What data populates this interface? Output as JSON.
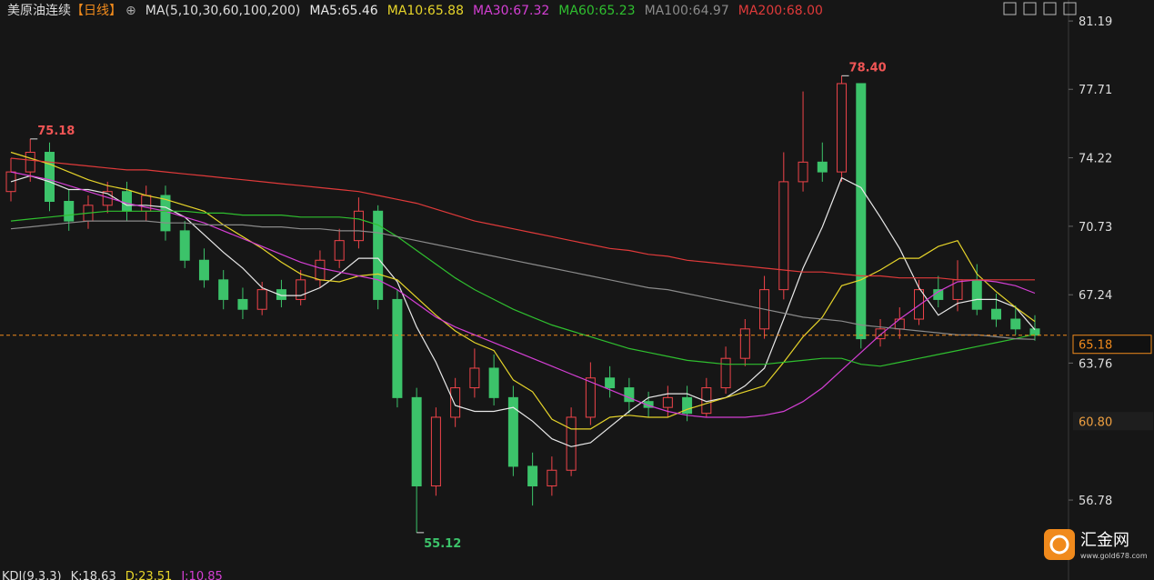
{
  "header": {
    "symbol": "美原油连续",
    "period": "【日线】",
    "ma_params": "MA(5,10,30,60,100,200)"
  },
  "chart_data": {
    "type": "candlestick",
    "open": [
      72.5,
      73.5,
      74.5,
      72.0,
      71.0,
      71.8,
      72.5,
      71.5,
      72.3,
      70.5,
      69.0,
      68.0,
      67.0,
      66.5,
      67.5,
      67.0,
      68.0,
      69.0,
      70.0,
      71.5,
      67.0,
      62.0,
      57.5,
      61.0,
      62.5,
      63.5,
      62.0,
      58.5,
      57.5,
      58.3,
      61.0,
      63.0,
      62.5,
      61.8,
      61.5,
      62.0,
      61.2,
      62.5,
      64.0,
      65.5,
      67.5,
      73.0,
      74.0,
      73.5,
      78.0,
      65.0,
      65.5,
      66.0,
      67.5,
      67.0,
      68.0,
      66.5,
      66.0,
      65.5
    ],
    "high": [
      74.2,
      75.18,
      75.0,
      72.6,
      72.3,
      73.0,
      73.0,
      72.8,
      72.8,
      71.0,
      69.6,
      68.5,
      67.6,
      67.9,
      68.0,
      68.5,
      69.5,
      70.6,
      72.2,
      71.8,
      67.5,
      62.5,
      61.5,
      63.0,
      64.5,
      64.2,
      62.6,
      59.2,
      59.0,
      61.5,
      63.8,
      63.6,
      63.0,
      62.3,
      62.6,
      62.6,
      63.0,
      64.6,
      66.0,
      68.2,
      74.5,
      77.6,
      75.0,
      78.4,
      78.0,
      66.0,
      66.6,
      68.0,
      68.2,
      69.0,
      68.8,
      67.3,
      66.7,
      66.2
    ],
    "low": [
      72.0,
      73.0,
      71.5,
      70.5,
      70.6,
      71.4,
      71.0,
      71.0,
      70.0,
      68.6,
      67.6,
      66.5,
      66.0,
      66.2,
      66.6,
      66.7,
      67.6,
      68.6,
      69.6,
      66.5,
      61.5,
      55.12,
      57.0,
      60.5,
      62.0,
      61.6,
      58.0,
      56.5,
      57.0,
      58.0,
      60.6,
      62.0,
      61.2,
      61.0,
      61.0,
      60.8,
      61.0,
      62.2,
      63.6,
      65.0,
      67.0,
      72.5,
      73.0,
      73.0,
      64.5,
      64.6,
      65.0,
      65.7,
      66.6,
      66.4,
      66.2,
      65.6,
      65.2,
      64.9
    ],
    "close": [
      73.5,
      74.5,
      72.0,
      71.0,
      71.8,
      72.5,
      71.5,
      72.3,
      70.5,
      69.0,
      68.0,
      67.0,
      66.5,
      67.5,
      67.0,
      68.0,
      69.0,
      70.0,
      71.5,
      67.0,
      62.0,
      57.5,
      61.0,
      62.5,
      63.5,
      62.0,
      58.5,
      57.5,
      58.3,
      61.0,
      63.0,
      62.5,
      61.8,
      61.5,
      62.0,
      61.2,
      62.5,
      64.0,
      65.5,
      67.5,
      73.0,
      74.0,
      73.5,
      78.0,
      65.0,
      65.5,
      66.0,
      67.5,
      67.0,
      68.0,
      66.5,
      66.0,
      65.5,
      65.18
    ],
    "up_color": "#f0444a",
    "down_color": "#3cc36a",
    "series": [
      {
        "name": "MA5:65.46",
        "color": "#e8e8e8",
        "values": [
          73.0,
          73.3,
          73.0,
          72.6,
          72.6,
          72.4,
          71.8,
          71.8,
          71.7,
          71.2,
          70.3,
          69.4,
          68.6,
          67.6,
          67.2,
          67.2,
          67.6,
          68.3,
          69.1,
          69.1,
          67.9,
          65.6,
          63.8,
          61.6,
          61.3,
          61.3,
          61.5,
          60.8,
          59.9,
          59.5,
          59.7,
          60.5,
          61.3,
          62.0,
          62.2,
          62.2,
          61.8,
          62.0,
          62.6,
          63.5,
          66.0,
          68.6,
          70.7,
          73.2,
          72.7,
          71.2,
          69.6,
          67.6,
          66.2,
          66.8,
          67.0,
          67.0,
          66.6,
          65.46
        ]
      },
      {
        "name": "MA10:65.88",
        "color": "#e6d42a",
        "values": [
          74.5,
          74.2,
          73.9,
          73.5,
          73.1,
          72.8,
          72.6,
          72.3,
          72.1,
          71.8,
          71.5,
          70.8,
          70.2,
          69.6,
          68.9,
          68.3,
          68.0,
          67.9,
          68.2,
          68.3,
          68.0,
          67.1,
          66.2,
          65.4,
          64.8,
          64.4,
          62.9,
          62.3,
          60.9,
          60.4,
          60.4,
          61.0,
          61.1,
          61.0,
          61.0,
          61.4,
          61.7,
          62.0,
          62.3,
          62.6,
          63.8,
          65.1,
          66.1,
          67.7,
          68.0,
          68.5,
          69.1,
          69.1,
          69.7,
          70.0,
          68.3,
          67.4,
          66.6,
          65.88
        ]
      },
      {
        "name": "MA30:67.32",
        "color": "#d43fd4",
        "values": [
          73.5,
          73.3,
          73.1,
          72.8,
          72.5,
          72.2,
          71.9,
          71.7,
          71.5,
          71.2,
          70.9,
          70.5,
          70.1,
          69.7,
          69.3,
          68.9,
          68.6,
          68.4,
          68.2,
          68.0,
          67.5,
          66.8,
          66.1,
          65.6,
          65.2,
          64.8,
          64.4,
          64.0,
          63.6,
          63.2,
          62.8,
          62.4,
          62.0,
          61.6,
          61.3,
          61.1,
          61.0,
          61.0,
          61.0,
          61.1,
          61.3,
          61.8,
          62.5,
          63.4,
          64.3,
          65.2,
          66.0,
          66.7,
          67.4,
          67.9,
          68.0,
          67.9,
          67.7,
          67.32
        ]
      },
      {
        "name": "MA60:65.23",
        "color": "#2fbf2f",
        "values": [
          71.0,
          71.1,
          71.2,
          71.3,
          71.4,
          71.5,
          71.5,
          71.5,
          71.5,
          71.5,
          71.4,
          71.4,
          71.3,
          71.3,
          71.3,
          71.2,
          71.2,
          71.2,
          71.1,
          70.8,
          70.2,
          69.5,
          68.8,
          68.1,
          67.5,
          67.0,
          66.5,
          66.1,
          65.7,
          65.4,
          65.1,
          64.8,
          64.5,
          64.3,
          64.1,
          63.9,
          63.8,
          63.7,
          63.7,
          63.7,
          63.8,
          63.9,
          64.0,
          64.0,
          63.7,
          63.6,
          63.8,
          64.0,
          64.2,
          64.4,
          64.6,
          64.8,
          65.0,
          65.23
        ]
      },
      {
        "name": "MA100:64.97",
        "color": "#8a8a8a",
        "values": [
          70.6,
          70.7,
          70.8,
          70.9,
          71.0,
          71.0,
          71.0,
          71.0,
          70.9,
          70.9,
          70.8,
          70.8,
          70.8,
          70.7,
          70.7,
          70.6,
          70.6,
          70.5,
          70.5,
          70.4,
          70.2,
          70.0,
          69.8,
          69.6,
          69.4,
          69.2,
          69.0,
          68.8,
          68.6,
          68.4,
          68.2,
          68.0,
          67.8,
          67.6,
          67.5,
          67.3,
          67.1,
          66.9,
          66.7,
          66.5,
          66.3,
          66.1,
          66.0,
          65.9,
          65.7,
          65.6,
          65.5,
          65.4,
          65.3,
          65.2,
          65.2,
          65.1,
          65.0,
          64.97
        ]
      },
      {
        "name": "MA200:68.00",
        "color": "#e03a3a",
        "values": [
          74.2,
          74.1,
          74.0,
          73.9,
          73.8,
          73.7,
          73.6,
          73.6,
          73.5,
          73.4,
          73.3,
          73.2,
          73.1,
          73.0,
          72.9,
          72.8,
          72.7,
          72.6,
          72.5,
          72.3,
          72.1,
          71.9,
          71.6,
          71.3,
          71.0,
          70.8,
          70.6,
          70.4,
          70.2,
          70.0,
          69.8,
          69.6,
          69.5,
          69.3,
          69.2,
          69.0,
          68.9,
          68.8,
          68.7,
          68.6,
          68.5,
          68.4,
          68.4,
          68.3,
          68.2,
          68.2,
          68.1,
          68.1,
          68.1,
          68.0,
          68.0,
          68.0,
          68.0,
          68.0
        ]
      }
    ],
    "ylim": [
      53.54,
      82.26
    ],
    "yticks": [
      81.19,
      77.71,
      74.22,
      70.73,
      67.24,
      63.76,
      56.78
    ],
    "extreme_labels": [
      {
        "value": 75.18,
        "label": "75.18"
      },
      {
        "value": 78.4,
        "label": "78.40"
      },
      {
        "value": 55.12,
        "label": "55.12"
      }
    ],
    "last_price": {
      "value": 65.18,
      "label": "65.18"
    },
    "price_marker": {
      "value": 60.8,
      "label": "60.80"
    }
  },
  "indicator": {
    "name": "KDJ(9,3,3)",
    "k": "K:18.63",
    "d": "D:23.51",
    "j": "J:10.85"
  },
  "watermark": {
    "brand": "汇金网",
    "site": "www.gold678.com"
  }
}
